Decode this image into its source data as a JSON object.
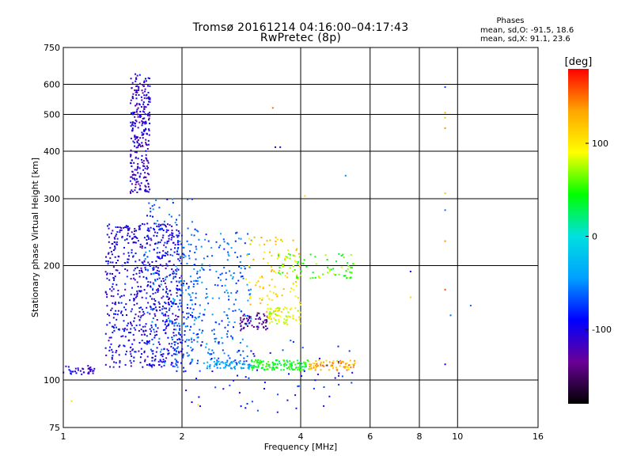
{
  "header": {
    "title_line1": "Tromsø 20161214 04:16:00–04:17:43",
    "title_line2": "RwPretec (8p)"
  },
  "phase_box": {
    "title": "Phases",
    "line1": "mean, sd,O: -91.5, 18.6",
    "line2": "mean, sd,X:  91.1, 23.6"
  },
  "chart_data": {
    "type": "scatter",
    "xlabel": "Frequency [MHz]",
    "ylabel": "Stationary phase Virtual Height [km]",
    "x_scale": "log",
    "y_scale": "log",
    "xlim": [
      1,
      16
    ],
    "ylim": [
      75,
      750
    ],
    "x_ticks": [
      1,
      2,
      4,
      6,
      8,
      10,
      16
    ],
    "x_tick_labels": [
      "1",
      "2",
      "4",
      "6",
      "8",
      "10",
      "16"
    ],
    "y_ticks": [
      75,
      100,
      200,
      300,
      400,
      500,
      600,
      750
    ],
    "y_tick_labels": [
      "75",
      "100",
      "200",
      "300",
      "400",
      "500",
      "600",
      "750"
    ],
    "grid": true,
    "colorbar": {
      "label": "[deg]",
      "range": [
        -180,
        180
      ],
      "ticks": [
        100,
        0,
        -100
      ],
      "tick_labels": [
        "100",
        "0",
        "-100"
      ]
    },
    "colormap": [
      "#000000",
      "#6a0096",
      "#0000ff",
      "#00a0ff",
      "#00e0e0",
      "#00ff00",
      "#ffff00",
      "#ffa500",
      "#ff0000"
    ],
    "clusters": [
      {
        "x_range": [
          1.0,
          1.2
        ],
        "h_range": [
          103,
          109
        ],
        "phase": -105,
        "count": 35
      },
      {
        "x_range": [
          1.48,
          1.66
        ],
        "h_range": [
          310,
          640
        ],
        "phase": -110,
        "count": 280
      },
      {
        "x_range": [
          1.28,
          2.0
        ],
        "h_range": [
          108,
          260
        ],
        "phase": -100,
        "count": 700
      },
      {
        "x_range": [
          1.6,
          2.2
        ],
        "h_range": [
          105,
          300
        ],
        "phase": -70,
        "count": 180
      },
      {
        "x_range": [
          1.9,
          3.0
        ],
        "h_range": [
          110,
          245
        ],
        "phase": -60,
        "count": 280
      },
      {
        "x_range": [
          2.3,
          3.0
        ],
        "h_range": [
          107,
          112
        ],
        "phase": -40,
        "count": 60
      },
      {
        "x_range": [
          3.0,
          4.2
        ],
        "h_range": [
          106,
          113
        ],
        "phase": 40,
        "count": 130
      },
      {
        "x_range": [
          4.2,
          5.5
        ],
        "h_range": [
          106,
          113
        ],
        "phase": 130,
        "count": 70
      },
      {
        "x_range": [
          2.8,
          3.3
        ],
        "h_range": [
          135,
          150
        ],
        "phase": -130,
        "count": 60
      },
      {
        "x_range": [
          3.3,
          4.0
        ],
        "h_range": [
          140,
          155
        ],
        "phase": 90,
        "count": 70
      },
      {
        "x_range": [
          2.9,
          4.0
        ],
        "h_range": [
          150,
          240
        ],
        "phase": 110,
        "count": 100
      },
      {
        "x_range": [
          3.5,
          5.5
        ],
        "h_range": [
          185,
          215
        ],
        "phase": 60,
        "count": 80
      },
      {
        "x_range": [
          1.9,
          5.5
        ],
        "h_range": [
          82,
          130
        ],
        "phase": -90,
        "count": 70
      }
    ],
    "isolated_points": [
      {
        "x": 9.3,
        "h": 590,
        "phase": -70
      },
      {
        "x": 9.3,
        "h": 505,
        "phase": 130
      },
      {
        "x": 9.3,
        "h": 490,
        "phase": 120
      },
      {
        "x": 9.3,
        "h": 460,
        "phase": 140
      },
      {
        "x": 9.3,
        "h": 310,
        "phase": 120
      },
      {
        "x": 9.3,
        "h": 280,
        "phase": -60
      },
      {
        "x": 9.3,
        "h": 232,
        "phase": 140
      },
      {
        "x": 9.3,
        "h": 173,
        "phase": 160
      },
      {
        "x": 9.3,
        "h": 110,
        "phase": -90
      },
      {
        "x": 9.6,
        "h": 148,
        "phase": -60
      },
      {
        "x": 10.8,
        "h": 157,
        "phase": -60
      },
      {
        "x": 7.6,
        "h": 193,
        "phase": -100
      },
      {
        "x": 7.6,
        "h": 165,
        "phase": 110
      },
      {
        "x": 3.4,
        "h": 520,
        "phase": 150
      },
      {
        "x": 3.45,
        "h": 410,
        "phase": -110
      },
      {
        "x": 3.55,
        "h": 410,
        "phase": -110
      },
      {
        "x": 4.1,
        "h": 305,
        "phase": 110
      },
      {
        "x": 5.2,
        "h": 345,
        "phase": -50
      },
      {
        "x": 1.05,
        "h": 88,
        "phase": 110
      },
      {
        "x": 2.2,
        "h": 86,
        "phase": 110
      }
    ]
  }
}
